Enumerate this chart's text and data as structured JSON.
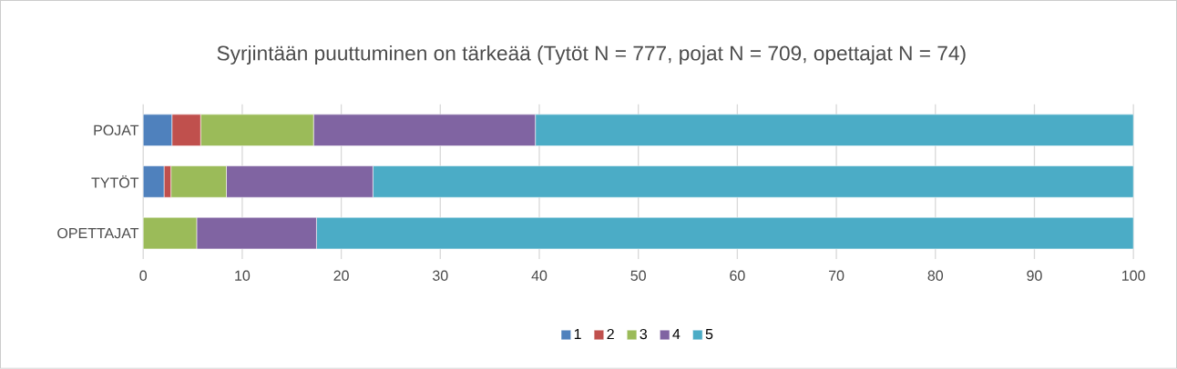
{
  "chart_data": {
    "type": "bar",
    "orientation": "horizontal",
    "stacked": true,
    "title": "Syrjintään puuttuminen on tärkeää (Tytöt N = 777, pojat N = 709, opettajat N = 74)",
    "categories": [
      "POJAT",
      "TYTÖT",
      "OPETTAJAT"
    ],
    "series": [
      {
        "name": "1",
        "color": "#4f81bd",
        "values": [
          2.9,
          2.1,
          0
        ]
      },
      {
        "name": "2",
        "color": "#c0504d",
        "values": [
          2.9,
          0.7,
          0
        ]
      },
      {
        "name": "3",
        "color": "#9bbb59",
        "values": [
          11.4,
          5.6,
          5.4
        ]
      },
      {
        "name": "4",
        "color": "#8064a2",
        "values": [
          22.4,
          14.8,
          12.1
        ]
      },
      {
        "name": "5",
        "color": "#4bacc6",
        "values": [
          60.4,
          76.8,
          82.5
        ]
      }
    ],
    "xlim": [
      0,
      100
    ],
    "xticks": [
      0,
      10,
      20,
      30,
      40,
      50,
      60,
      70,
      80,
      90,
      100
    ],
    "grid": "x",
    "legend": "bottom"
  }
}
